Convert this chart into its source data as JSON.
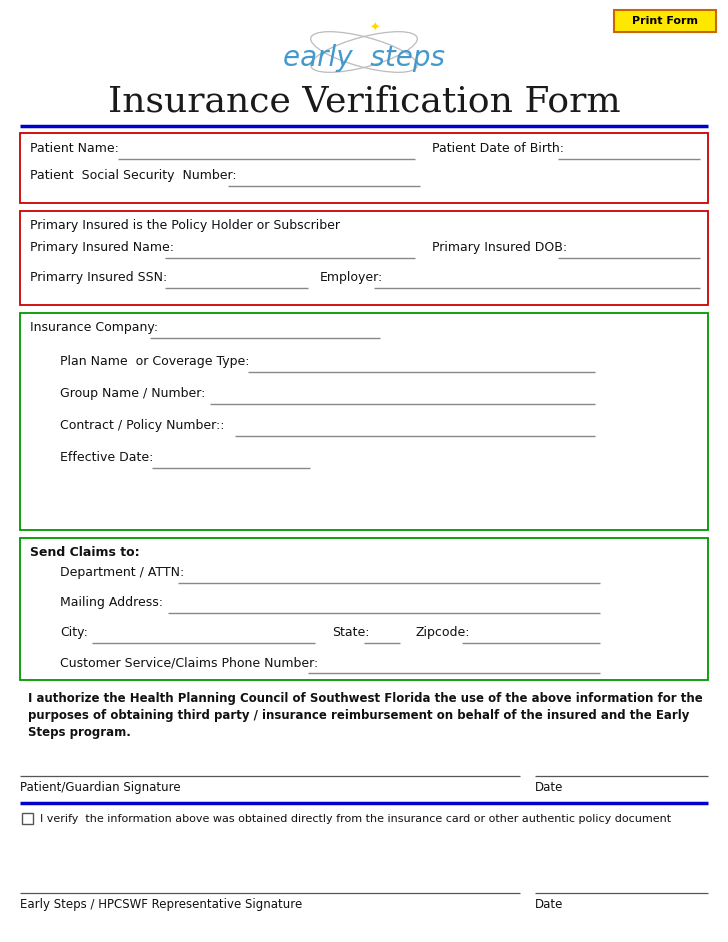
{
  "title": "Insurance Verification Form",
  "logo_text": "early  steps",
  "print_btn_text": "Print Form",
  "print_btn_bg": "#FFE800",
  "print_btn_border": "#CC6600",
  "bg_color": "#FFFFFF",
  "title_color": "#1a1a1a",
  "title_fontsize": 26,
  "blue_line_color": "#0000CC",
  "red_box_color": "#CC0000",
  "green_box_color": "#009900",
  "label_color": "#111111",
  "underline_color": "#888888",
  "auth_text_line1": "I authorize the Health Planning Council of Southwest Florida the use of the above information for the",
  "auth_text_line2": "purposes of obtaining third party / insurance reimbursement on behalf of the insured and the Early",
  "auth_text_line3": "Steps program.",
  "verify_text": "I verify  the information above was obtained directly from the insurance card or other authentic policy document",
  "sig1_label": "Patient/Guardian Signature",
  "sig2_label": "Early Steps / HPCSWF Representative Signature",
  "date_label": "Date"
}
